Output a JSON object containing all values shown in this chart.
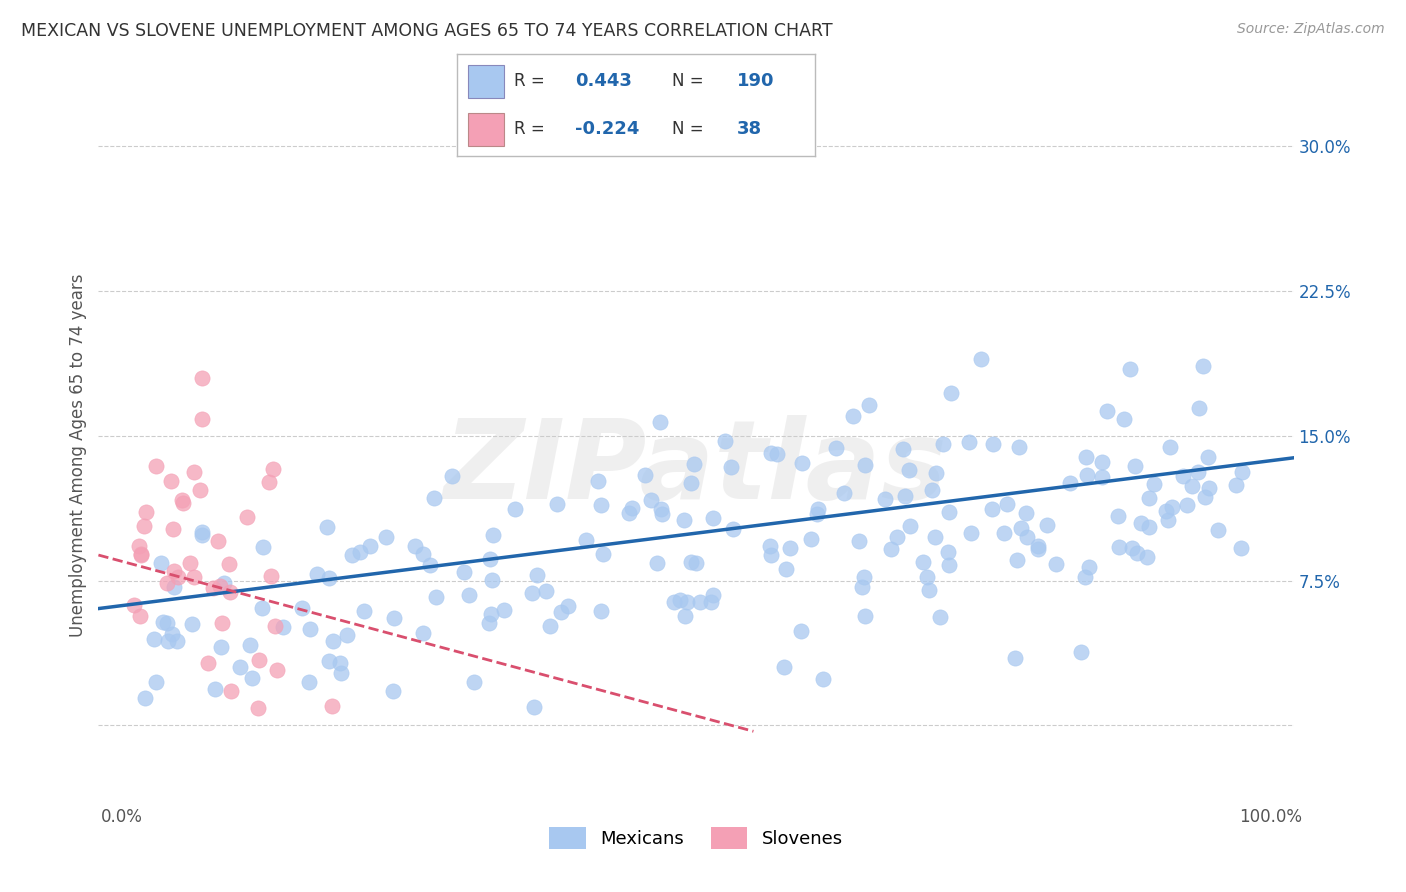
{
  "title": "MEXICAN VS SLOVENE UNEMPLOYMENT AMONG AGES 65 TO 74 YEARS CORRELATION CHART",
  "source": "Source: ZipAtlas.com",
  "ylabel": "Unemployment Among Ages 65 to 74 years",
  "xlabel": "",
  "xlim": [
    -2,
    102
  ],
  "ylim": [
    -4,
    32
  ],
  "yticks": [
    0,
    7.5,
    15.0,
    22.5,
    30.0
  ],
  "ytick_labels": [
    "",
    "7.5%",
    "15.0%",
    "22.5%",
    "30.0%"
  ],
  "blue_R": 0.443,
  "blue_N": 190,
  "pink_R": -0.224,
  "pink_N": 38,
  "blue_color": "#A8C8F0",
  "pink_color": "#F4A0B5",
  "blue_line_color": "#2166AC",
  "pink_line_color": "#D94F6E",
  "watermark": "ZIPatlas",
  "watermark_color": "#CCCCCC",
  "background_color": "#FFFFFF",
  "grid_color": "#CCCCCC",
  "title_color": "#333333",
  "legend_value_color": "#2166AC",
  "legend_label_color": "#333333"
}
